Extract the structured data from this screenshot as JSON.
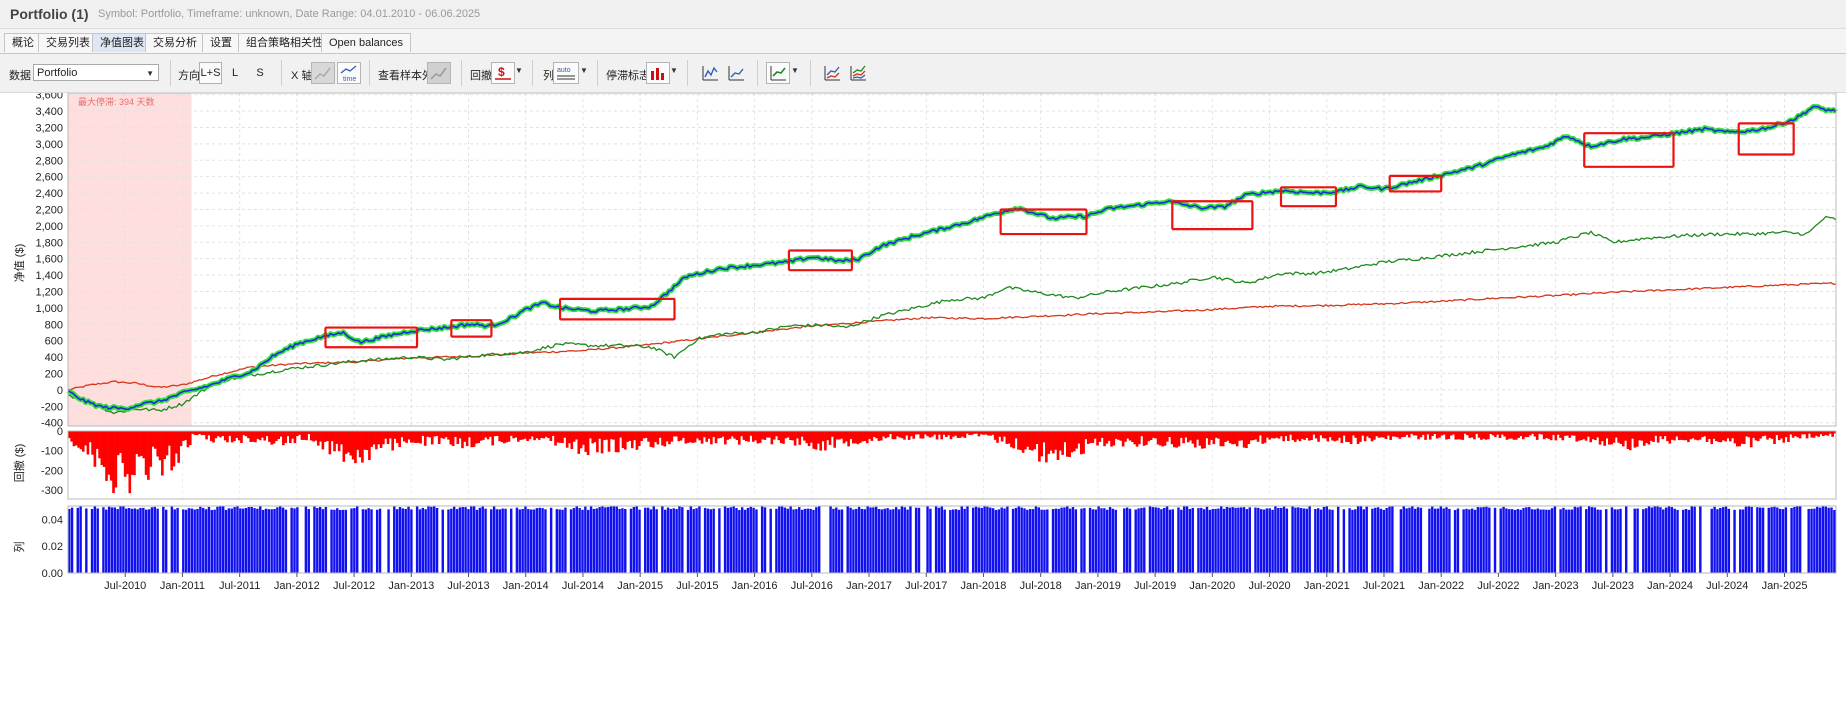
{
  "window": {
    "title": "Portfolio (1)",
    "subtitle": "Symbol: Portfolio, Timeframe: unknown, Date Range: 04.01.2010 - 06.06.2025"
  },
  "tabs": [
    {
      "label": "概论",
      "active": false
    },
    {
      "label": "交易列表",
      "active": false
    },
    {
      "label": "净值图表",
      "active": true
    },
    {
      "label": "交易分析",
      "active": false
    },
    {
      "label": "设置",
      "active": false
    },
    {
      "label": "组合策略相关性",
      "active": false
    },
    {
      "label": "Open balances",
      "active": false
    }
  ],
  "toolbar": {
    "data_label": "数据",
    "data_value": "Portfolio",
    "direction_label": "方向",
    "direction_options": [
      "L+S",
      "L",
      "S"
    ],
    "xaxis_label": "X 轴",
    "xaxis_time_label": "time",
    "oos_label": "查看样本外",
    "drawdown_label": "回撤",
    "column_label": "列",
    "column_icon_text": "auto",
    "stagnation_label": "停滞标志"
  },
  "colors": {
    "equity_main": "#1c2de0",
    "equity_glow": "#33e03a",
    "series_green": "#1f8a1f",
    "series_red": "#d6361b",
    "drawdown": "#ff0000",
    "volume_bars": "#1010f0",
    "stagnation_shade": "#ffdede",
    "highlight_box": "#ee1111"
  },
  "chart_data": {
    "type": "line",
    "ylabel_equity": "净值 ($)",
    "ylabel_drawdown": "回撤 ($)",
    "ylabel_column": "列",
    "stagnation_note": "最大停滞: 394 天数",
    "equity_yticks": [
      3600,
      3400,
      3200,
      3000,
      2800,
      2600,
      2400,
      2200,
      2000,
      1800,
      1600,
      1400,
      1200,
      1000,
      800,
      600,
      400,
      200,
      0,
      -200,
      -400
    ],
    "equity_ytick_labels": [
      "3,600",
      "3,400",
      "3,200",
      "3,000",
      "2,800",
      "2,600",
      "2,400",
      "2,200",
      "2,000",
      "1,800",
      "1,600",
      "1,400",
      "1,200",
      "1,000",
      "800",
      "600",
      "400",
      "200",
      "0",
      "-200",
      "-400"
    ],
    "equity_ylim": [
      -440,
      3620
    ],
    "drawdown_yticks": [
      0,
      -100,
      -200,
      -300
    ],
    "drawdown_ytick_labels": [
      "0",
      "-100",
      "-200",
      "-300"
    ],
    "drawdown_ylim": [
      -345,
      0
    ],
    "column_yticks": [
      0.04,
      0.02,
      0.0
    ],
    "column_ytick_labels": [
      "0.04",
      "0.02",
      "0.00"
    ],
    "column_ylim": [
      0,
      0.05
    ],
    "xlim": [
      2010.0,
      2025.45
    ],
    "xticks": [
      2010.5,
      2011.0,
      2011.5,
      2012.0,
      2012.5,
      2013.0,
      2013.5,
      2014.0,
      2014.5,
      2015.0,
      2015.5,
      2016.0,
      2016.5,
      2017.0,
      2017.5,
      2018.0,
      2018.5,
      2019.0,
      2019.5,
      2020.0,
      2020.5,
      2021.0,
      2021.5,
      2022.0,
      2022.5,
      2023.0,
      2023.5,
      2024.0,
      2024.5,
      2025.0
    ],
    "xtick_labels": [
      "Jul-2010",
      "Jan-2011",
      "Jul-2011",
      "Jan-2012",
      "Jul-2012",
      "Jan-2013",
      "Jul-2013",
      "Jan-2014",
      "Jul-2014",
      "Jan-2015",
      "Jul-2015",
      "Jan-2016",
      "Jul-2016",
      "Jan-2017",
      "Jul-2017",
      "Jan-2018",
      "Jul-2018",
      "Jan-2019",
      "Jul-2019",
      "Jan-2020",
      "Jul-2020",
      "Jan-2021",
      "Jul-2021",
      "Jan-2022",
      "Jul-2022",
      "Jan-2023",
      "Jul-2023",
      "Jan-2024",
      "Jul-2024",
      "Jan-2025"
    ],
    "stagnation_period": [
      2010.0,
      2011.08
    ],
    "series": [
      {
        "key": "main",
        "x": [
          2010.0,
          2010.15,
          2010.3,
          2010.5,
          2010.65,
          2010.8,
          2011.0,
          2011.25,
          2011.45,
          2011.6,
          2011.8,
          2012.0,
          2012.2,
          2012.4,
          2012.55,
          2012.8,
          2013.0,
          2013.3,
          2013.5,
          2013.7,
          2013.85,
          2014.0,
          2014.15,
          2014.3,
          2014.6,
          2014.9,
          2015.1,
          2015.25,
          2015.4,
          2015.7,
          2016.0,
          2016.3,
          2016.5,
          2016.75,
          2016.9,
          2017.1,
          2017.4,
          2017.6,
          2017.9,
          2018.1,
          2018.3,
          2018.6,
          2018.9,
          2019.1,
          2019.4,
          2019.6,
          2019.9,
          2020.1,
          2020.3,
          2020.6,
          2020.9,
          2021.1,
          2021.3,
          2021.5,
          2021.8,
          2022.0,
          2022.3,
          2022.6,
          2022.9,
          2023.1,
          2023.3,
          2023.6,
          2023.8,
          2024.0,
          2024.3,
          2024.5,
          2024.7,
          2024.9,
          2025.1,
          2025.25,
          2025.35,
          2025.45
        ],
        "y": [
          -20,
          -140,
          -210,
          -230,
          -170,
          -140,
          -40,
          60,
          160,
          220,
          420,
          560,
          640,
          700,
          580,
          660,
          720,
          760,
          800,
          780,
          860,
          980,
          1060,
          1000,
          960,
          990,
          1020,
          1200,
          1380,
          1480,
          1520,
          1560,
          1620,
          1570,
          1590,
          1750,
          1880,
          1950,
          2060,
          2150,
          2220,
          2090,
          2120,
          2210,
          2260,
          2300,
          2220,
          2230,
          2380,
          2430,
          2400,
          2420,
          2480,
          2450,
          2550,
          2620,
          2720,
          2860,
          2960,
          3100,
          2970,
          3060,
          3080,
          3120,
          3180,
          3140,
          3160,
          3210,
          3310,
          3450,
          3420,
          3400
        ]
      },
      {
        "key": "green",
        "x": [
          2010.0,
          2010.2,
          2010.4,
          2010.6,
          2010.8,
          2011.0,
          2011.3,
          2011.6,
          2011.9,
          2012.2,
          2012.5,
          2012.8,
          2013.0,
          2013.3,
          2013.6,
          2014.0,
          2014.3,
          2014.6,
          2014.9,
          2015.1,
          2015.3,
          2015.5,
          2015.7,
          2016.0,
          2016.3,
          2016.6,
          2016.8,
          2017.1,
          2017.4,
          2017.7,
          2018.0,
          2018.2,
          2018.5,
          2018.8,
          2019.1,
          2019.4,
          2019.7,
          2020.0,
          2020.3,
          2020.6,
          2020.9,
          2021.2,
          2021.5,
          2021.8,
          2022.1,
          2022.4,
          2022.7,
          2023.0,
          2023.3,
          2023.5,
          2023.8,
          2024.1,
          2024.4,
          2024.7,
          2025.0,
          2025.2,
          2025.35,
          2025.45
        ],
        "y": [
          -60,
          -160,
          -280,
          -230,
          -250,
          -170,
          100,
          180,
          250,
          300,
          350,
          380,
          400,
          370,
          420,
          460,
          560,
          540,
          540,
          520,
          400,
          620,
          680,
          700,
          780,
          790,
          760,
          900,
          1000,
          1100,
          1120,
          1250,
          1180,
          1120,
          1200,
          1250,
          1300,
          1380,
          1300,
          1420,
          1420,
          1480,
          1560,
          1600,
          1650,
          1700,
          1750,
          1800,
          1920,
          1800,
          1850,
          1880,
          1900,
          1900,
          1920,
          1900,
          2100,
          2080
        ]
      },
      {
        "key": "red",
        "x": [
          2010.0,
          2010.2,
          2010.4,
          2010.6,
          2010.8,
          2011.0,
          2011.3,
          2011.6,
          2012.0,
          2012.5,
          2013.0,
          2013.5,
          2014.0,
          2014.5,
          2015.0,
          2015.5,
          2016.0,
          2016.5,
          2017.0,
          2017.5,
          2018.0,
          2018.5,
          2019.0,
          2019.5,
          2020.0,
          2020.5,
          2021.0,
          2021.5,
          2022.0,
          2022.5,
          2023.0,
          2023.5,
          2024.0,
          2024.5,
          2025.0,
          2025.45
        ],
        "y": [
          0,
          60,
          100,
          80,
          30,
          60,
          180,
          280,
          320,
          340,
          390,
          410,
          450,
          480,
          540,
          620,
          700,
          780,
          830,
          880,
          870,
          900,
          930,
          950,
          980,
          1020,
          1030,
          1050,
          1080,
          1120,
          1150,
          1190,
          1220,
          1250,
          1280,
          1300
        ]
      }
    ],
    "highlight_boxes": [
      {
        "x": [
          2012.25,
          2013.05
        ],
        "y": [
          520,
          760
        ]
      },
      {
        "x": [
          2013.35,
          2013.7
        ],
        "y": [
          650,
          850
        ]
      },
      {
        "x": [
          2014.3,
          2015.3
        ],
        "y": [
          860,
          1110
        ]
      },
      {
        "x": [
          2016.3,
          2016.85
        ],
        "y": [
          1460,
          1700
        ]
      },
      {
        "x": [
          2018.15,
          2018.9
        ],
        "y": [
          1900,
          2200
        ]
      },
      {
        "x": [
          2019.65,
          2020.35
        ],
        "y": [
          1960,
          2300
        ]
      },
      {
        "x": [
          2020.6,
          2021.08
        ],
        "y": [
          2240,
          2470
        ]
      },
      {
        "x": [
          2021.55,
          2022.0
        ],
        "y": [
          2420,
          2610
        ]
      },
      {
        "x": [
          2023.25,
          2024.03
        ],
        "y": [
          2720,
          3130
        ]
      },
      {
        "x": [
          2024.6,
          2025.08
        ],
        "y": [
          2870,
          3250
        ]
      }
    ],
    "drawdown_profile": {
      "x": [
        2010.0,
        2010.15,
        2010.3,
        2010.45,
        2010.6,
        2010.8,
        2011.0,
        2011.1,
        2011.3,
        2011.6,
        2011.9,
        2012.1,
        2012.3,
        2012.5,
        2012.7,
        2013.0,
        2013.4,
        2013.8,
        2014.1,
        2014.5,
        2014.9,
        2015.2,
        2015.5,
        2015.9,
        2016.3,
        2016.6,
        2016.9,
        2017.2,
        2017.6,
        2018.0,
        2018.3,
        2018.55,
        2018.8,
        2019.1,
        2019.5,
        2019.9,
        2020.2,
        2020.5,
        2020.9,
        2021.3,
        2021.7,
        2022.1,
        2022.5,
        2022.9,
        2023.3,
        2023.6,
        2023.9,
        2024.2,
        2024.6,
        2024.9,
        2025.2,
        2025.45
      ],
      "y": [
        -40,
        -120,
        -200,
        -320,
        -250,
        -210,
        -150,
        -20,
        -60,
        -50,
        -70,
        -40,
        -110,
        -170,
        -120,
        -60,
        -80,
        -60,
        -40,
        -110,
        -90,
        -70,
        -60,
        -60,
        -60,
        -90,
        -60,
        -40,
        -40,
        -30,
        -90,
        -160,
        -120,
        -70,
        -70,
        -80,
        -90,
        -50,
        -50,
        -60,
        -40,
        -40,
        -40,
        -40,
        -50,
        -90,
        -60,
        -50,
        -80,
        -60,
        -40,
        -30
      ]
    }
  }
}
